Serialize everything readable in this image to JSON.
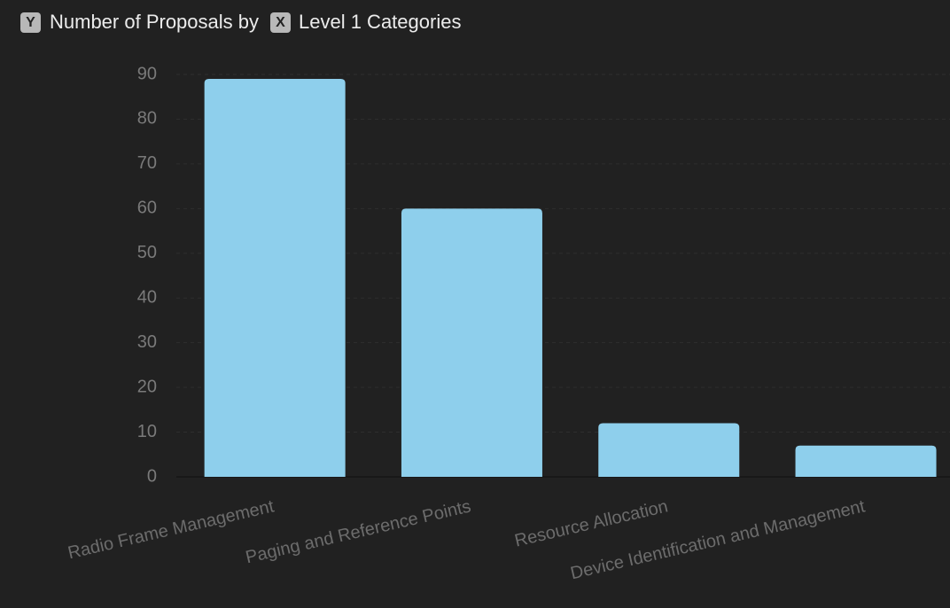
{
  "chart_data": {
    "type": "bar",
    "y_badge": "Y",
    "title": "Number of Proposals by",
    "x_badge": "X",
    "x_title": "Level 1 Categories",
    "categories": [
      "Radio Frame Management",
      "Paging and Reference Points",
      "Resource Allocation",
      "Device Identification and Management"
    ],
    "values": [
      89,
      60,
      12,
      7
    ],
    "color": "#8ecfec",
    "ylim": [
      0,
      90
    ],
    "yticks": [
      0,
      10,
      20,
      30,
      40,
      50,
      60,
      70,
      80,
      90
    ],
    "grid": true
  }
}
